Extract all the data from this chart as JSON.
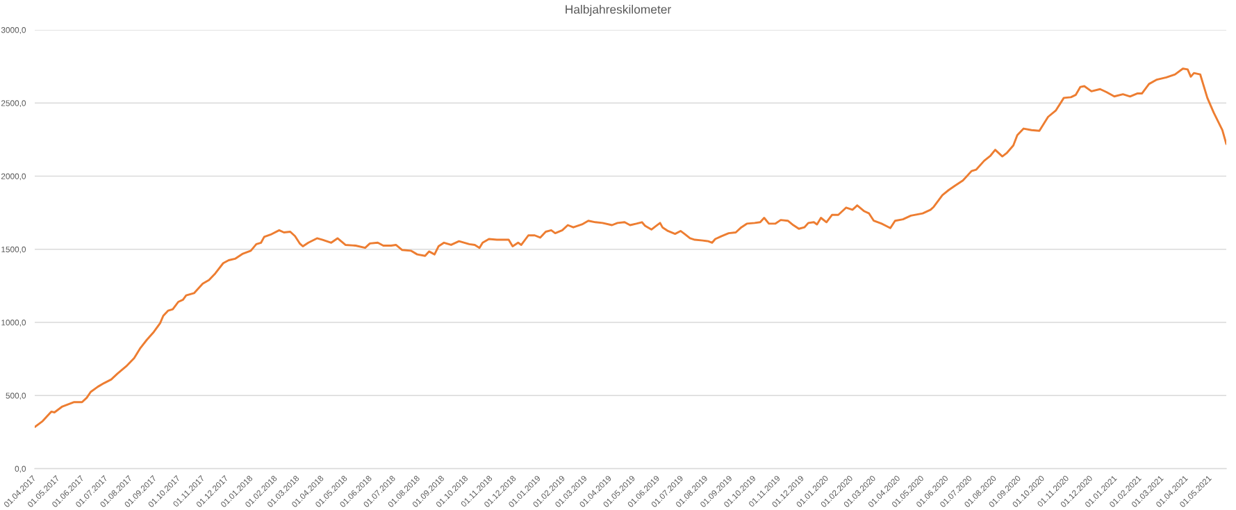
{
  "chart_data": {
    "type": "line",
    "title": "Halbjahreskilometer",
    "x": [
      "2017-04-01",
      "2017-04-11",
      "2017-04-22",
      "2017-04-26",
      "2017-05-06",
      "2017-05-21",
      "2017-05-31",
      "2017-06-06",
      "2017-06-11",
      "2017-06-20",
      "2017-06-28",
      "2017-07-07",
      "2017-07-15",
      "2017-07-26",
      "2017-08-05",
      "2017-08-13",
      "2017-08-21",
      "2017-08-30",
      "2017-09-07",
      "2017-09-11",
      "2017-09-17",
      "2017-09-23",
      "2017-09-30",
      "2017-10-06",
      "2017-10-10",
      "2017-10-20",
      "2017-10-31",
      "2017-11-08",
      "2017-11-16",
      "2017-11-26",
      "2017-12-03",
      "2017-12-11",
      "2017-12-21",
      "2017-12-31",
      "2018-01-07",
      "2018-01-13",
      "2018-01-17",
      "2018-01-25",
      "2018-02-05",
      "2018-02-11",
      "2018-02-19",
      "2018-02-25",
      "2018-03-03",
      "2018-03-07",
      "2018-03-14",
      "2018-03-25",
      "2018-04-01",
      "2018-04-12",
      "2018-04-20",
      "2018-04-30",
      "2018-05-13",
      "2018-05-25",
      "2018-05-31",
      "2018-06-10",
      "2018-06-17",
      "2018-06-27",
      "2018-07-03",
      "2018-07-11",
      "2018-07-22",
      "2018-07-30",
      "2018-08-09",
      "2018-08-14",
      "2018-08-21",
      "2018-08-26",
      "2018-09-02",
      "2018-09-11",
      "2018-09-21",
      "2018-10-04",
      "2018-10-11",
      "2018-10-17",
      "2018-10-21",
      "2018-10-29",
      "2018-11-08",
      "2018-11-23",
      "2018-11-28",
      "2018-12-05",
      "2018-12-09",
      "2018-12-18",
      "2018-12-26",
      "2019-01-02",
      "2019-01-09",
      "2019-01-16",
      "2019-01-21",
      "2019-01-30",
      "2019-02-06",
      "2019-02-13",
      "2019-02-24",
      "2019-03-04",
      "2019-03-13",
      "2019-03-22",
      "2019-04-03",
      "2019-04-10",
      "2019-04-19",
      "2019-04-26",
      "2019-05-04",
      "2019-05-11",
      "2019-05-15",
      "2019-05-23",
      "2019-05-29",
      "2019-06-03",
      "2019-06-06",
      "2019-06-13",
      "2019-06-22",
      "2019-06-29",
      "2019-07-04",
      "2019-07-11",
      "2019-07-17",
      "2019-07-27",
      "2019-08-03",
      "2019-08-08",
      "2019-08-12",
      "2019-08-20",
      "2019-08-29",
      "2019-09-07",
      "2019-09-14",
      "2019-09-21",
      "2019-10-01",
      "2019-10-08",
      "2019-10-13",
      "2019-10-19",
      "2019-10-27",
      "2019-11-03",
      "2019-11-12",
      "2019-11-19",
      "2019-11-26",
      "2019-12-03",
      "2019-12-08",
      "2019-12-15",
      "2019-12-19",
      "2019-12-24",
      "2019-12-31",
      "2020-01-07",
      "2020-01-15",
      "2020-01-25",
      "2020-02-02",
      "2020-02-08",
      "2020-02-17",
      "2020-02-23",
      "2020-02-29",
      "2020-03-10",
      "2020-03-21",
      "2020-03-27",
      "2020-04-06",
      "2020-04-16",
      "2020-05-01",
      "2020-05-11",
      "2020-05-15",
      "2020-05-26",
      "2020-06-03",
      "2020-06-11",
      "2020-06-21",
      "2020-07-02",
      "2020-07-08",
      "2020-07-18",
      "2020-07-26",
      "2020-08-01",
      "2020-08-10",
      "2020-08-16",
      "2020-08-24",
      "2020-08-29",
      "2020-09-06",
      "2020-09-16",
      "2020-09-26",
      "2020-10-07",
      "2020-10-17",
      "2020-10-27",
      "2020-11-05",
      "2020-11-11",
      "2020-11-17",
      "2020-11-22",
      "2020-12-01",
      "2020-12-12",
      "2020-12-20",
      "2020-12-30",
      "2021-01-10",
      "2021-01-19",
      "2021-01-28",
      "2021-02-03",
      "2021-02-12",
      "2021-02-22",
      "2021-03-06",
      "2021-03-17",
      "2021-03-27",
      "2021-04-02",
      "2021-04-06",
      "2021-04-10",
      "2021-04-18",
      "2021-04-27",
      "2021-05-05",
      "2021-05-16",
      "2021-05-21"
    ],
    "series": [
      {
        "color": "#ed7d31",
        "values": [
          285,
          325,
          390,
          385,
          425,
          455,
          455,
          485,
          525,
          560,
          585,
          610,
          650,
          700,
          755,
          825,
          880,
          935,
          995,
          1045,
          1080,
          1090,
          1140,
          1155,
          1185,
          1200,
          1265,
          1290,
          1335,
          1405,
          1425,
          1435,
          1470,
          1490,
          1535,
          1545,
          1585,
          1600,
          1630,
          1615,
          1620,
          1590,
          1540,
          1520,
          1545,
          1575,
          1565,
          1545,
          1575,
          1530,
          1525,
          1510,
          1540,
          1545,
          1525,
          1525,
          1530,
          1495,
          1490,
          1465,
          1455,
          1485,
          1465,
          1520,
          1545,
          1530,
          1555,
          1535,
          1530,
          1510,
          1545,
          1570,
          1565,
          1565,
          1520,
          1545,
          1530,
          1595,
          1595,
          1580,
          1620,
          1630,
          1610,
          1630,
          1665,
          1650,
          1670,
          1695,
          1685,
          1680,
          1665,
          1680,
          1685,
          1665,
          1675,
          1685,
          1660,
          1635,
          1660,
          1680,
          1650,
          1625,
          1605,
          1625,
          1605,
          1575,
          1565,
          1560,
          1555,
          1545,
          1570,
          1590,
          1610,
          1615,
          1650,
          1675,
          1680,
          1685,
          1715,
          1675,
          1675,
          1700,
          1695,
          1665,
          1640,
          1650,
          1680,
          1685,
          1670,
          1715,
          1685,
          1735,
          1735,
          1785,
          1770,
          1800,
          1760,
          1745,
          1695,
          1675,
          1645,
          1695,
          1705,
          1730,
          1745,
          1770,
          1790,
          1870,
          1905,
          1935,
          1970,
          2035,
          2045,
          2105,
          2140,
          2180,
          2135,
          2160,
          2210,
          2280,
          2325,
          2315,
          2310,
          2405,
          2450,
          2535,
          2540,
          2555,
          2610,
          2615,
          2580,
          2595,
          2575,
          2545,
          2560,
          2545,
          2565,
          2565,
          2630,
          2660,
          2675,
          2695,
          2735,
          2730,
          2680,
          2705,
          2695,
          2535,
          2435,
          2315,
          2220
        ]
      }
    ],
    "xlim": [
      "2017-04-01",
      "2021-05-21"
    ],
    "xticks": [
      {
        "value": "2017-04-01",
        "label": "01.04.2017"
      },
      {
        "value": "2017-05-01",
        "label": "01.05.2017"
      },
      {
        "value": "2017-06-01",
        "label": "01.06.2017"
      },
      {
        "value": "2017-07-01",
        "label": "01.07.2017"
      },
      {
        "value": "2017-08-01",
        "label": "01.08.2017"
      },
      {
        "value": "2017-09-01",
        "label": "01.09.2017"
      },
      {
        "value": "2017-10-01",
        "label": "01.10.2017"
      },
      {
        "value": "2017-11-01",
        "label": "01.11.2017"
      },
      {
        "value": "2017-12-01",
        "label": "01.12.2017"
      },
      {
        "value": "2018-01-01",
        "label": "01.01.2018"
      },
      {
        "value": "2018-02-01",
        "label": "01.02.2018"
      },
      {
        "value": "2018-03-01",
        "label": "01.03.2018"
      },
      {
        "value": "2018-04-01",
        "label": "01.04.2018"
      },
      {
        "value": "2018-05-01",
        "label": "01.05.2018"
      },
      {
        "value": "2018-06-01",
        "label": "01.06.2018"
      },
      {
        "value": "2018-07-01",
        "label": "01.07.2018"
      },
      {
        "value": "2018-08-01",
        "label": "01.08.2018"
      },
      {
        "value": "2018-09-01",
        "label": "01.09.2018"
      },
      {
        "value": "2018-10-01",
        "label": "01.10.2018"
      },
      {
        "value": "2018-11-01",
        "label": "01.11.2018"
      },
      {
        "value": "2018-12-01",
        "label": "01.12.2018"
      },
      {
        "value": "2019-01-01",
        "label": "01.01.2019"
      },
      {
        "value": "2019-02-01",
        "label": "01.02.2019"
      },
      {
        "value": "2019-03-01",
        "label": "01.03.2019"
      },
      {
        "value": "2019-04-01",
        "label": "01.04.2019"
      },
      {
        "value": "2019-05-01",
        "label": "01.05.2019"
      },
      {
        "value": "2019-06-01",
        "label": "01.06.2019"
      },
      {
        "value": "2019-07-01",
        "label": "01.07.2019"
      },
      {
        "value": "2019-08-01",
        "label": "01.08.2019"
      },
      {
        "value": "2019-09-01",
        "label": "01.09.2019"
      },
      {
        "value": "2019-10-01",
        "label": "01.10.2019"
      },
      {
        "value": "2019-11-01",
        "label": "01.11.2019"
      },
      {
        "value": "2019-12-01",
        "label": "01.12.2019"
      },
      {
        "value": "2020-01-01",
        "label": "01.01.2020"
      },
      {
        "value": "2020-02-01",
        "label": "01.02.2020"
      },
      {
        "value": "2020-03-01",
        "label": "01.03.2020"
      },
      {
        "value": "2020-04-01",
        "label": "01.04.2020"
      },
      {
        "value": "2020-05-01",
        "label": "01.05.2020"
      },
      {
        "value": "2020-06-01",
        "label": "01.06.2020"
      },
      {
        "value": "2020-07-01",
        "label": "01.07.2020"
      },
      {
        "value": "2020-08-01",
        "label": "01.08.2020"
      },
      {
        "value": "2020-09-01",
        "label": "01.09.2020"
      },
      {
        "value": "2020-10-01",
        "label": "01.10.2020"
      },
      {
        "value": "2020-11-01",
        "label": "01.11.2020"
      },
      {
        "value": "2020-12-01",
        "label": "01.12.2020"
      },
      {
        "value": "2021-01-01",
        "label": "01.01.2021"
      },
      {
        "value": "2021-02-01",
        "label": "01.02.2021"
      },
      {
        "value": "2021-03-01",
        "label": "01.03.2021"
      },
      {
        "value": "2021-04-01",
        "label": "01.04.2021"
      },
      {
        "value": "2021-05-01",
        "label": "01.05.2021"
      }
    ],
    "ylim": [
      0,
      3000
    ],
    "yticks": [
      {
        "value": 0,
        "label": "0,0"
      },
      {
        "value": 500,
        "label": "500,0"
      },
      {
        "value": 1000,
        "label": "1000,0"
      },
      {
        "value": 1500,
        "label": "1500,0"
      },
      {
        "value": 2000,
        "label": "2000,0"
      },
      {
        "value": 2500,
        "label": "2500,0"
      },
      {
        "value": 3000,
        "label": "3000,0"
      }
    ],
    "grid": "y",
    "line_style": "solid"
  }
}
